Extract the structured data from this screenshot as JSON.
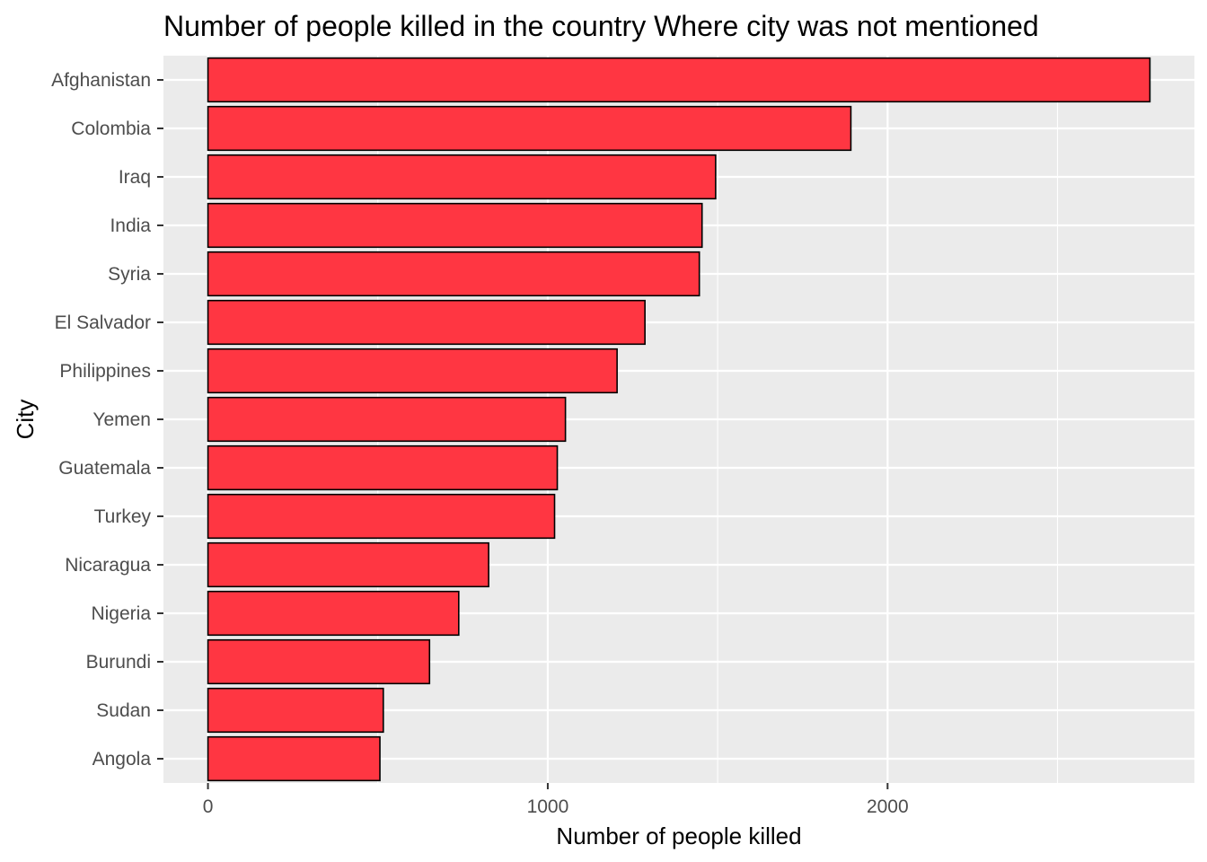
{
  "chart_data": {
    "type": "bar",
    "orientation": "horizontal",
    "title": "Number of people killed in the country Where city was not mentioned",
    "xlabel": "Number of people killed",
    "ylabel": "City",
    "categories": [
      "Afghanistan",
      "Colombia",
      "Iraq",
      "India",
      "Syria",
      "El Salvador",
      "Philippines",
      "Yemen",
      "Guatemala",
      "Turkey",
      "Nicaragua",
      "Nigeria",
      "Burundi",
      "Sudan",
      "Angola"
    ],
    "values": [
      2772,
      1892,
      1494,
      1454,
      1446,
      1286,
      1204,
      1052,
      1028,
      1020,
      826,
      738,
      652,
      516,
      506
    ],
    "x_ticks": [
      0,
      1000,
      2000
    ],
    "x_tick_labels": [
      "0",
      "1000",
      "2000"
    ],
    "xlim": [
      -131,
      2903
    ],
    "grid": true,
    "legend": "none",
    "colors": {
      "bar_fill": "#FF3642",
      "bar_stroke": "#000000",
      "panel_background": "#EBEBEB",
      "grid_line": "#FFFFFF"
    }
  }
}
